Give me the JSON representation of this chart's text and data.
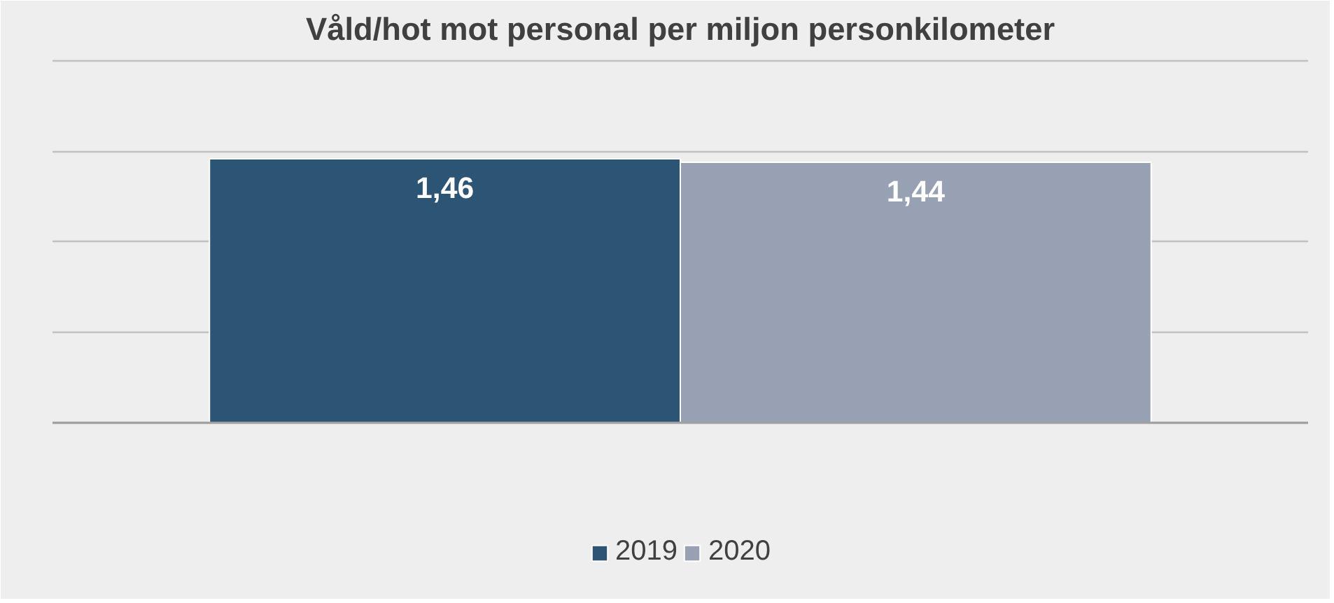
{
  "chart_data": {
    "type": "bar",
    "title": "Våld/hot mot personal per miljon personkilometer",
    "categories": [
      null
    ],
    "series": [
      {
        "name": "2019",
        "color": "#2c5474",
        "values": [
          1.46
        ],
        "value_labels": [
          "1,46"
        ]
      },
      {
        "name": "2020",
        "color": "#97a1b3",
        "values": [
          1.44
        ],
        "value_labels": [
          "1,44"
        ]
      }
    ],
    "ylim": [
      0,
      2
    ],
    "yticks": [
      {
        "value": 0,
        "label": null
      },
      {
        "value": 0.5,
        "label": null
      },
      {
        "value": 1,
        "label": null
      },
      {
        "value": 1.5,
        "label": null
      },
      {
        "value": 2,
        "label": null
      }
    ],
    "tick_labels": false,
    "grid": "y",
    "legend": "bottom"
  }
}
